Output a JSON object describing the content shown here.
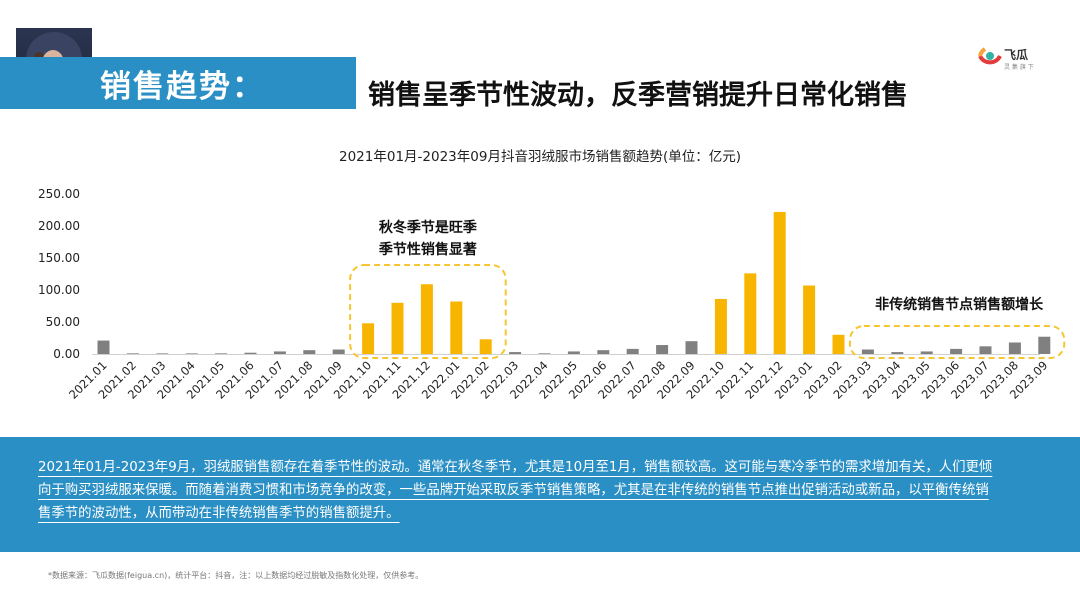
{
  "header": {
    "section_label": "销售趋势：",
    "title": "销售呈季节性波动，反季营销提升日常化销售"
  },
  "logo": {
    "name": "飞瓜",
    "tagline": "灵 集 旗 下"
  },
  "chart_data": {
    "type": "bar",
    "title": "2021年01月-2023年09月抖音羽绒服市场销售额趋势(单位：亿元)",
    "categories": [
      "2021.01",
      "2021.02",
      "2021.03",
      "2021.04",
      "2021.05",
      "2021.06",
      "2021.07",
      "2021.08",
      "2021.09",
      "2021.10",
      "2021.11",
      "2021.12",
      "2022.01",
      "2022.02",
      "2022.03",
      "2022.04",
      "2022.05",
      "2022.06",
      "2022.07",
      "2022.08",
      "2022.09",
      "2022.10",
      "2022.11",
      "2022.12",
      "2023.01",
      "2023.02",
      "2023.03",
      "2023.04",
      "2023.05",
      "2023.06",
      "2023.07",
      "2023.08",
      "2023.09"
    ],
    "values": [
      21,
      1,
      0.5,
      0.3,
      1,
      2,
      4,
      6,
      7,
      48,
      80,
      109,
      82,
      23,
      3,
      1,
      4,
      6,
      8,
      14,
      20,
      86,
      126,
      222,
      107,
      30,
      7,
      3,
      4,
      8,
      12,
      18,
      27
    ],
    "highlight": [
      "2021.10",
      "2021.11",
      "2021.12",
      "2022.01",
      "2022.02",
      "2022.10",
      "2022.11",
      "2022.12",
      "2023.01",
      "2023.02"
    ],
    "colors": {
      "highlight": "#f7b500",
      "normal": "#808080"
    },
    "ylim": [
      0,
      250
    ],
    "yticks": [
      "250.00",
      "200.00",
      "150.00",
      "100.00",
      "50.00",
      "0.00"
    ],
    "ytick_values": [
      250,
      200,
      150,
      100,
      50,
      0
    ],
    "grid": false,
    "annotations": [
      {
        "lines": [
          "秋冬季节是旺季",
          "季节性销售显著"
        ],
        "from": "2021.10",
        "to": "2022.02"
      },
      {
        "lines": [
          "非传统销售节点销售额增长"
        ],
        "from": "2023.03",
        "to": "2023.09"
      }
    ]
  },
  "summary": {
    "lines": [
      "2021年01月-2023年9月，羽绒服销售额存在着季节性的波动。通常在秋冬季节，尤其是10月至1月，销售额较高。这可能与寒冷季节的需求增加有关，人们更倾",
      "向于购买羽绒服来保暖。而随着消费习惯和市场竞争的改变，一些品牌开始采取反季节销售策略，尤其是在非传统的销售节点推出促销活动或新品，以平衡传统销",
      "售季节的波动性，从而带动在非传统销售季节的销售额提升。"
    ]
  },
  "footer": {
    "note": "*数据来源：飞瓜数据(feigua.cn)，统计平台：抖音，注：以上数据均经过脱敏及指数化处理，仅供参考。"
  }
}
